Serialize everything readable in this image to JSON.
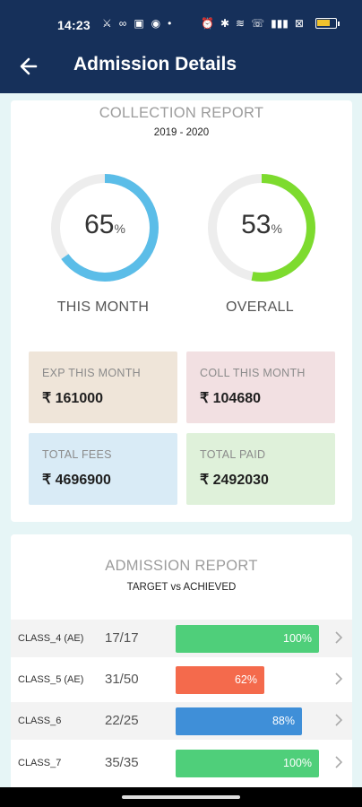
{
  "status_bar": {
    "time": "14:23",
    "left_icons": [
      "⚔",
      "∞",
      "▣",
      "◉",
      "•"
    ],
    "right_icons": [
      "⏰",
      "✱",
      "≋",
      "☏",
      "▮▮▮",
      "⊠"
    ]
  },
  "header": {
    "title": "Admission Details",
    "back_icon": "arrow-left-icon"
  },
  "collection": {
    "title": "COLLECTION REPORT",
    "year": "2019 - 2020",
    "this_month": {
      "value": "65",
      "unit": "%",
      "label": "THIS MONTH",
      "fraction": 0.65,
      "color": "#5bbde8"
    },
    "overall": {
      "value": "53",
      "unit": "%",
      "label": "OVERALL",
      "fraction": 0.53,
      "color": "#7ddb2e"
    },
    "track_color": "#ededed",
    "stats": [
      {
        "label": "EXP THIS MONTH",
        "value": "₹ 161000",
        "bg": "#efe5d9"
      },
      {
        "label": "COLL THIS MONTH",
        "value": "₹ 104680",
        "bg": "#f2e0e2"
      },
      {
        "label": "TOTAL FEES",
        "value": "₹ 4696900",
        "bg": "#d9ebf6"
      },
      {
        "label": "TOTAL PAID",
        "value": "₹ 2492030",
        "bg": "#dff1da"
      }
    ]
  },
  "admission": {
    "title": "ADMISSION REPORT",
    "subtitle": "TARGET vs ACHIEVED",
    "rows": [
      {
        "class": "CLASS_4 (AE)",
        "count": "17/17",
        "percent": "100%",
        "fraction": 1.0,
        "color": "#4fcf7a"
      },
      {
        "class": "CLASS_5 (AE)",
        "count": "31/50",
        "percent": "62%",
        "fraction": 0.62,
        "color": "#f46a4c"
      },
      {
        "class": "CLASS_6",
        "count": "22/25",
        "percent": "88%",
        "fraction": 0.88,
        "color": "#3f8fd8"
      },
      {
        "class": "CLASS_7",
        "count": "35/35",
        "percent": "100%",
        "fraction": 1.0,
        "color": "#4fcf7a"
      }
    ]
  }
}
